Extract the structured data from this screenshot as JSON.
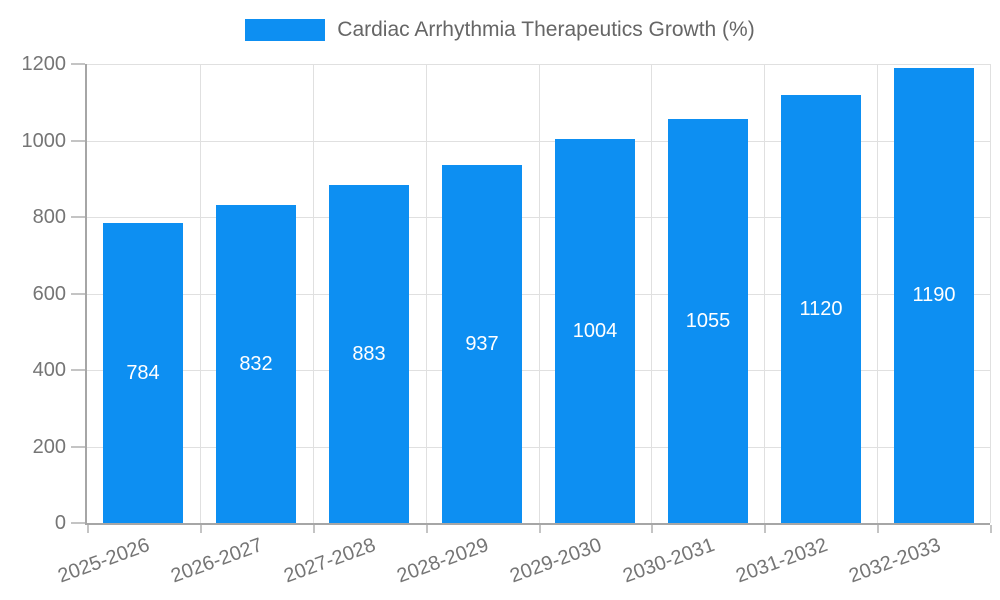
{
  "legend": {
    "label": "Cardiac Arrhythmia Therapeutics Growth (%)"
  },
  "chart_data": {
    "type": "bar",
    "title": "Cardiac Arrhythmia Therapeutics Growth (%)",
    "categories": [
      "2025-2026",
      "2026-2027",
      "2027-2028",
      "2028-2029",
      "2029-2030",
      "2030-2031",
      "2031-2032",
      "2032-2033"
    ],
    "values": [
      784,
      832,
      883,
      937,
      1004,
      1055,
      1120,
      1190
    ],
    "value_labels": [
      "784",
      "832",
      "883",
      "937",
      "1004",
      "1055",
      "1120",
      "1190"
    ],
    "xlabel": "",
    "ylabel": "",
    "ylim": [
      0,
      1200
    ],
    "yticks": [
      0,
      200,
      400,
      600,
      800,
      1000,
      1200
    ],
    "ytick_labels": [
      "0",
      "200",
      "400",
      "600",
      "800",
      "1000",
      "1200"
    ],
    "grid": true,
    "legend_position": "top",
    "x_label_rotation_deg": -20
  },
  "colors": {
    "bar": "#0d8ff2",
    "value_label": "#ffffff",
    "legend_text": "#666666",
    "axis_label": "#757575",
    "gridline": "#e0e0e0",
    "axis_line": "#a6a6a6",
    "tick": "#c4c4c4",
    "background": "#ffffff"
  }
}
